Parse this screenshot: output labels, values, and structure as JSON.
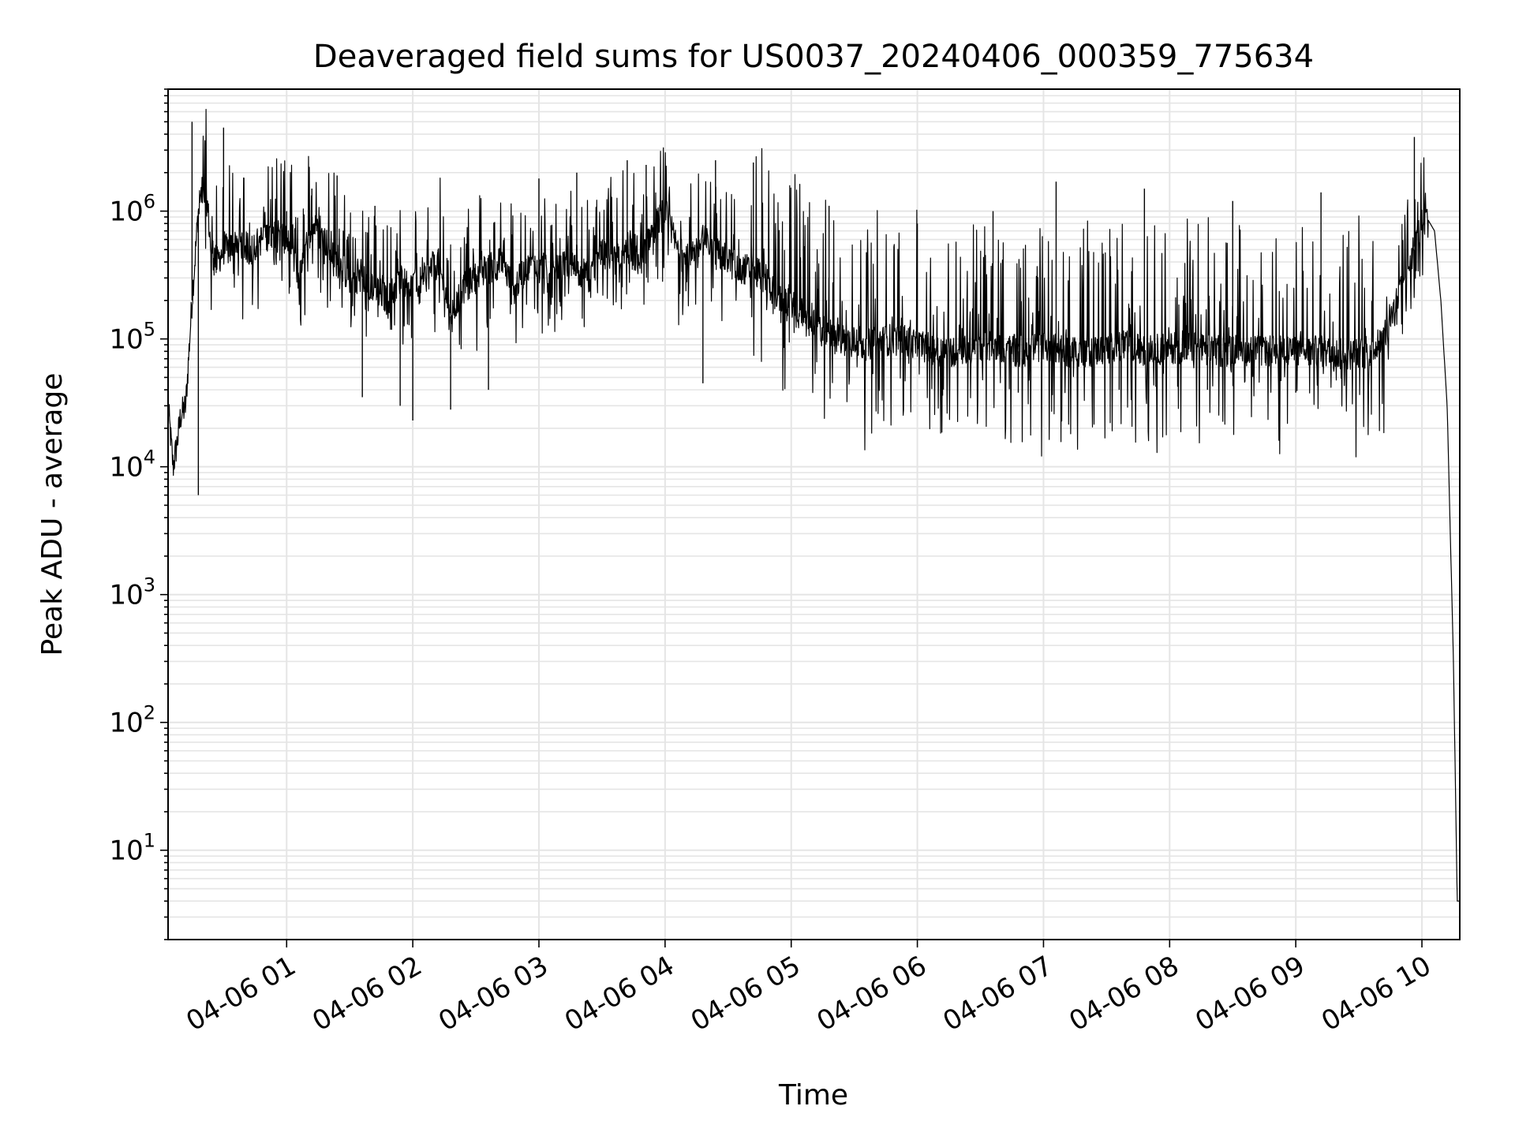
{
  "chart_data": {
    "type": "line",
    "title": "Deaveraged field sums for US0037_20240406_000359_775634",
    "xlabel": "Time",
    "ylabel": "Peak ADU - average",
    "yscale": "log",
    "ylim": [
      2,
      9000000
    ],
    "xlim_hours": [
      0.06,
      10.3
    ],
    "grid": true,
    "grid_color": "#e5e5e5",
    "line_color": "#000000",
    "x_ticks": [
      {
        "label": "04-06 01",
        "hour": 1
      },
      {
        "label": "04-06 02",
        "hour": 2
      },
      {
        "label": "04-06 03",
        "hour": 3
      },
      {
        "label": "04-06 04",
        "hour": 4
      },
      {
        "label": "04-06 05",
        "hour": 5
      },
      {
        "label": "04-06 06",
        "hour": 6
      },
      {
        "label": "04-06 07",
        "hour": 7
      },
      {
        "label": "04-06 08",
        "hour": 8
      },
      {
        "label": "04-06 09",
        "hour": 9
      },
      {
        "label": "04-06 10",
        "hour": 10
      }
    ],
    "y_ticks": [
      {
        "base": "10",
        "exp": "1",
        "value": 10
      },
      {
        "base": "10",
        "exp": "2",
        "value": 100
      },
      {
        "base": "10",
        "exp": "3",
        "value": 1000
      },
      {
        "base": "10",
        "exp": "4",
        "value": 10000
      },
      {
        "base": "10",
        "exp": "5",
        "value": 100000
      },
      {
        "base": "10",
        "exp": "6",
        "value": 1000000
      }
    ],
    "series": [
      {
        "x_hours": [
          0.06,
          0.1,
          0.13,
          0.16,
          0.2,
          0.25,
          0.3,
          0.33,
          0.37,
          0.4,
          0.45,
          0.5,
          0.55,
          0.6,
          0.7,
          0.8,
          0.9,
          1.0,
          1.1,
          1.2,
          1.3,
          1.4,
          1.5,
          1.6,
          1.7,
          1.8,
          1.9,
          2.0,
          2.1,
          2.2,
          2.3,
          2.4,
          2.5,
          2.6,
          2.7,
          2.8,
          2.9,
          3.0,
          3.1,
          3.2,
          3.3,
          3.4,
          3.5,
          3.6,
          3.7,
          3.8,
          3.9,
          4.0,
          4.1,
          4.2,
          4.3,
          4.4,
          4.5,
          4.6,
          4.7,
          4.8,
          4.9,
          5.0,
          5.2,
          5.4,
          5.6,
          5.8,
          6.0,
          6.2,
          6.4,
          6.6,
          6.8,
          7.0,
          7.2,
          7.4,
          7.6,
          7.8,
          8.0,
          8.2,
          8.4,
          8.6,
          8.8,
          9.0,
          9.2,
          9.4,
          9.6,
          9.7,
          9.8,
          9.9,
          10.0,
          10.05,
          10.1,
          10.15,
          10.2,
          10.25,
          10.28,
          10.3
        ],
        "y": [
          30000,
          10000,
          15000,
          25000,
          30000,
          200000,
          1000000,
          1400000,
          1200000,
          500000,
          400000,
          500000,
          500000,
          600000,
          500000,
          600000,
          700000,
          600000,
          300000,
          800000,
          600000,
          400000,
          300000,
          300000,
          250000,
          200000,
          300000,
          250000,
          300000,
          400000,
          150000,
          250000,
          300000,
          350000,
          400000,
          250000,
          350000,
          400000,
          300000,
          400000,
          350000,
          300000,
          450000,
          400000,
          500000,
          400000,
          700000,
          1000000,
          500000,
          400000,
          600000,
          500000,
          400000,
          350000,
          350000,
          300000,
          200000,
          200000,
          120000,
          100000,
          90000,
          100000,
          90000,
          80000,
          80000,
          90000,
          80000,
          85000,
          80000,
          80000,
          90000,
          80000,
          85000,
          85000,
          80000,
          80000,
          80000,
          80000,
          80000,
          75000,
          80000,
          100000,
          200000,
          400000,
          800000,
          850000,
          700000,
          200000,
          30000,
          300,
          4,
          4
        ],
        "spikes": [
          {
            "x_hours": 0.25,
            "y": 5000000
          },
          {
            "x_hours": 0.5,
            "y": 4500000
          },
          {
            "x_hours": 1.0,
            "y": 1000000
          },
          {
            "x_hours": 1.2,
            "y": 1500000
          },
          {
            "x_hours": 1.4,
            "y": 1900000
          },
          {
            "x_hours": 1.7,
            "y": 1100000
          },
          {
            "x_hours": 2.2,
            "y": 500000
          },
          {
            "x_hours": 3.0,
            "y": 1800000
          },
          {
            "x_hours": 3.3,
            "y": 2000000
          },
          {
            "x_hours": 3.7,
            "y": 2500000
          },
          {
            "x_hours": 3.85,
            "y": 2300000
          },
          {
            "x_hours": 4.4,
            "y": 2500000
          },
          {
            "x_hours": 4.7,
            "y": 2400000
          },
          {
            "x_hours": 5.3,
            "y": 1100000
          },
          {
            "x_hours": 6.0,
            "y": 800000
          },
          {
            "x_hours": 6.6,
            "y": 1000000
          },
          {
            "x_hours": 7.1,
            "y": 1700000
          },
          {
            "x_hours": 7.8,
            "y": 1500000
          },
          {
            "x_hours": 8.5,
            "y": 1200000
          },
          {
            "x_hours": 9.2,
            "y": 1400000
          },
          {
            "x_hours": 9.94,
            "y": 3800000
          },
          {
            "x_hours": 0.3,
            "y": 6000
          },
          {
            "x_hours": 1.6,
            "y": 35000
          },
          {
            "x_hours": 1.9,
            "y": 30000
          },
          {
            "x_hours": 2.0,
            "y": 23000
          },
          {
            "x_hours": 2.3,
            "y": 28000
          },
          {
            "x_hours": 2.6,
            "y": 40000
          },
          {
            "x_hours": 4.3,
            "y": 45000
          },
          {
            "x_hours": 6.2,
            "y": 36000
          },
          {
            "x_hours": 6.8,
            "y": 38000
          },
          {
            "x_hours": 7.6,
            "y": 40000
          },
          {
            "x_hours": 8.3,
            "y": 40000
          },
          {
            "x_hours": 9.0,
            "y": 38000
          }
        ]
      }
    ]
  }
}
